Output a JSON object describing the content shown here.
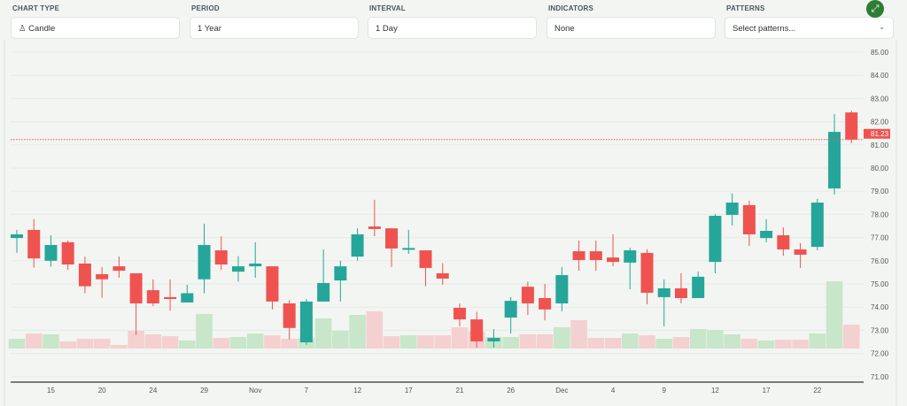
{
  "controls": {
    "chart_type": {
      "label": "CHART TYPE",
      "value": "Candle",
      "icon": "candle-icon"
    },
    "period": {
      "label": "PERIOD",
      "value": "1 Year"
    },
    "interval": {
      "label": "INTERVAL",
      "value": "1 Day"
    },
    "indicators": {
      "label": "INDICATORS",
      "value": "None"
    },
    "patterns": {
      "label": "PATTERNS",
      "placeholder": "Select patterns..."
    },
    "expand_icon": "expand-arrows-icon"
  },
  "colors": {
    "up": "#26a69a",
    "down": "#ef5350",
    "up_volume": "#c8e6c9",
    "down_volume": "#f5d0d0",
    "expand_button": "#2e7d32"
  },
  "chart_data": {
    "type": "candlestick",
    "ylim": [
      71,
      85
    ],
    "y_ticks": [
      "85.00",
      "84.00",
      "83.00",
      "82.00",
      "81.00",
      "80.00",
      "79.00",
      "78.00",
      "77.00",
      "76.00",
      "75.00",
      "74.00",
      "73.00",
      "72.00",
      "71.00"
    ],
    "x_tick_labels": [
      {
        "index": 2,
        "label": "15"
      },
      {
        "index": 5,
        "label": "20"
      },
      {
        "index": 8,
        "label": "24"
      },
      {
        "index": 11,
        "label": "29"
      },
      {
        "index": 14,
        "label": "Nov"
      },
      {
        "index": 17,
        "label": "7"
      },
      {
        "index": 20,
        "label": "12"
      },
      {
        "index": 23,
        "label": "17"
      },
      {
        "index": 26,
        "label": "21"
      },
      {
        "index": 29,
        "label": "26"
      },
      {
        "index": 32,
        "label": "Dec"
      },
      {
        "index": 35,
        "label": "4"
      },
      {
        "index": 38,
        "label": "9"
      },
      {
        "index": 41,
        "label": "12"
      },
      {
        "index": 44,
        "label": "17"
      },
      {
        "index": 47,
        "label": "22"
      }
    ],
    "last_price": "81.23",
    "ohlc": [
      [
        76.98,
        77.33,
        76.34,
        77.14
      ],
      [
        77.33,
        77.8,
        75.7,
        76.1
      ],
      [
        76.0,
        77.1,
        75.75,
        76.68
      ],
      [
        76.8,
        76.87,
        75.6,
        75.84
      ],
      [
        75.88,
        76.18,
        74.6,
        74.9
      ],
      [
        75.42,
        75.73,
        74.4,
        75.2
      ],
      [
        75.76,
        76.18,
        75.27,
        75.57
      ],
      [
        75.46,
        75.46,
        72.8,
        74.16
      ],
      [
        74.73,
        75.2,
        74.05,
        74.16
      ],
      [
        74.43,
        75.2,
        73.85,
        74.35
      ],
      [
        74.2,
        74.96,
        74.2,
        74.6
      ],
      [
        75.2,
        77.6,
        74.6,
        76.68
      ],
      [
        76.45,
        77.06,
        75.6,
        75.84
      ],
      [
        75.53,
        76.2,
        75.1,
        75.76
      ],
      [
        75.76,
        76.8,
        75.27,
        75.88
      ],
      [
        75.76,
        75.76,
        73.9,
        74.24
      ],
      [
        74.16,
        74.3,
        72.6,
        73.1
      ],
      [
        72.48,
        74.35,
        72.37,
        74.24
      ],
      [
        74.24,
        76.49,
        74.24,
        75.04
      ],
      [
        75.15,
        76.0,
        74.24,
        75.76
      ],
      [
        76.18,
        77.4,
        76.0,
        77.14
      ],
      [
        77.48,
        78.63,
        77.06,
        77.37
      ],
      [
        77.4,
        77.4,
        75.73,
        76.53
      ],
      [
        76.49,
        77.33,
        76.3,
        76.55
      ],
      [
        76.45,
        76.45,
        74.9,
        75.69
      ],
      [
        75.46,
        75.9,
        74.96,
        75.23
      ],
      [
        73.97,
        74.16,
        73.17,
        73.47
      ],
      [
        73.47,
        73.8,
        72.25,
        72.52
      ],
      [
        72.52,
        73.05,
        72.25,
        72.67
      ],
      [
        73.55,
        74.43,
        72.86,
        74.27
      ],
      [
        74.88,
        75.1,
        73.66,
        74.16
      ],
      [
        74.39,
        75.0,
        73.43,
        73.9
      ],
      [
        74.16,
        75.73,
        73.82,
        75.38
      ],
      [
        76.41,
        76.87,
        75.57,
        76.03
      ],
      [
        76.41,
        76.87,
        75.57,
        76.03
      ],
      [
        76.14,
        77.14,
        75.76,
        75.95
      ],
      [
        75.92,
        76.56,
        74.77,
        76.45
      ],
      [
        76.34,
        76.49,
        74.12,
        74.62
      ],
      [
        74.43,
        75.19,
        73.17,
        74.81
      ],
      [
        74.81,
        75.46,
        74.16,
        74.39
      ],
      [
        74.39,
        75.53,
        74.39,
        75.31
      ],
      [
        75.95,
        78.02,
        75.46,
        77.94
      ],
      [
        77.98,
        78.9,
        77.52,
        78.51
      ],
      [
        78.4,
        78.59,
        76.64,
        77.14
      ],
      [
        76.98,
        77.79,
        76.8,
        77.29
      ],
      [
        77.1,
        77.44,
        76.22,
        76.49
      ],
      [
        76.49,
        76.76,
        75.69,
        76.26
      ],
      [
        76.6,
        78.67,
        76.45,
        78.51
      ],
      [
        79.12,
        82.33,
        78.86,
        81.56
      ],
      [
        82.4,
        82.48,
        81.07,
        81.23
      ]
    ],
    "volume_relative": [
      11,
      17,
      16,
      8,
      11,
      11,
      4,
      20,
      16,
      14,
      9,
      39,
      12,
      13,
      17,
      15,
      11,
      12,
      34,
      20,
      38,
      42,
      14,
      15,
      15,
      15,
      24,
      19,
      13,
      13,
      16,
      16,
      24,
      32,
      12,
      12,
      17,
      15,
      11,
      13,
      22,
      21,
      16,
      11,
      9,
      10,
      10,
      17,
      76,
      27
    ]
  }
}
